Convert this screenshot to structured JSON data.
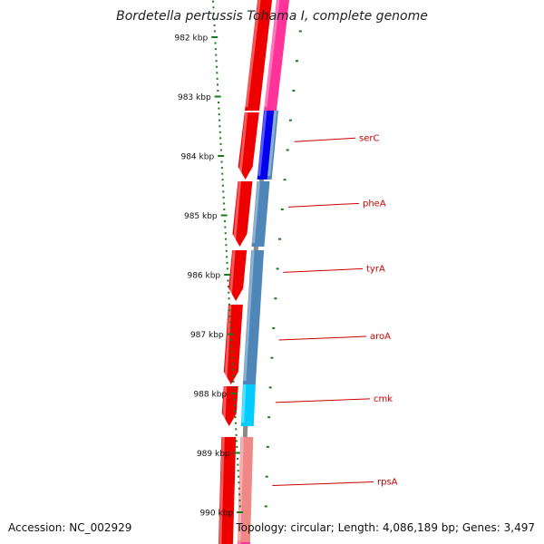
{
  "map": {
    "title": "Bordetella pertussis Tohama I, complete genome",
    "accession": "Accession: NC_002929",
    "summary": "Topology: circular; Length: 4,086,189 bp; Genes: 3,497"
  },
  "ruler": {
    "start_kbp": 982,
    "end_kbp": 990,
    "labels": [
      "982 kbp",
      "983 kbp",
      "984 kbp",
      "985 kbp",
      "986 kbp",
      "987 kbp",
      "988 kbp",
      "989 kbp",
      "990 kbp"
    ],
    "color": "#1a7a1a"
  },
  "genes": [
    {
      "label": "serC",
      "at_kbp": 983.76
    },
    {
      "label": "pheA",
      "at_kbp": 984.86
    },
    {
      "label": "tyrA",
      "at_kbp": 985.96
    },
    {
      "label": "aroA",
      "at_kbp": 987.1
    },
    {
      "label": "cmk",
      "at_kbp": 988.15
    },
    {
      "label": "rpsA",
      "at_kbp": 989.55
    }
  ],
  "colors": {
    "backbone": "#8a8a8a",
    "cds": "#ee0000",
    "cog_magenta": "#ff3399",
    "cog_blue": "#0000ee",
    "cog_steel": "#4f86b8",
    "cog_cyan": "#00ccff",
    "cog_pink": "#f08888",
    "label": "#cc0000"
  }
}
